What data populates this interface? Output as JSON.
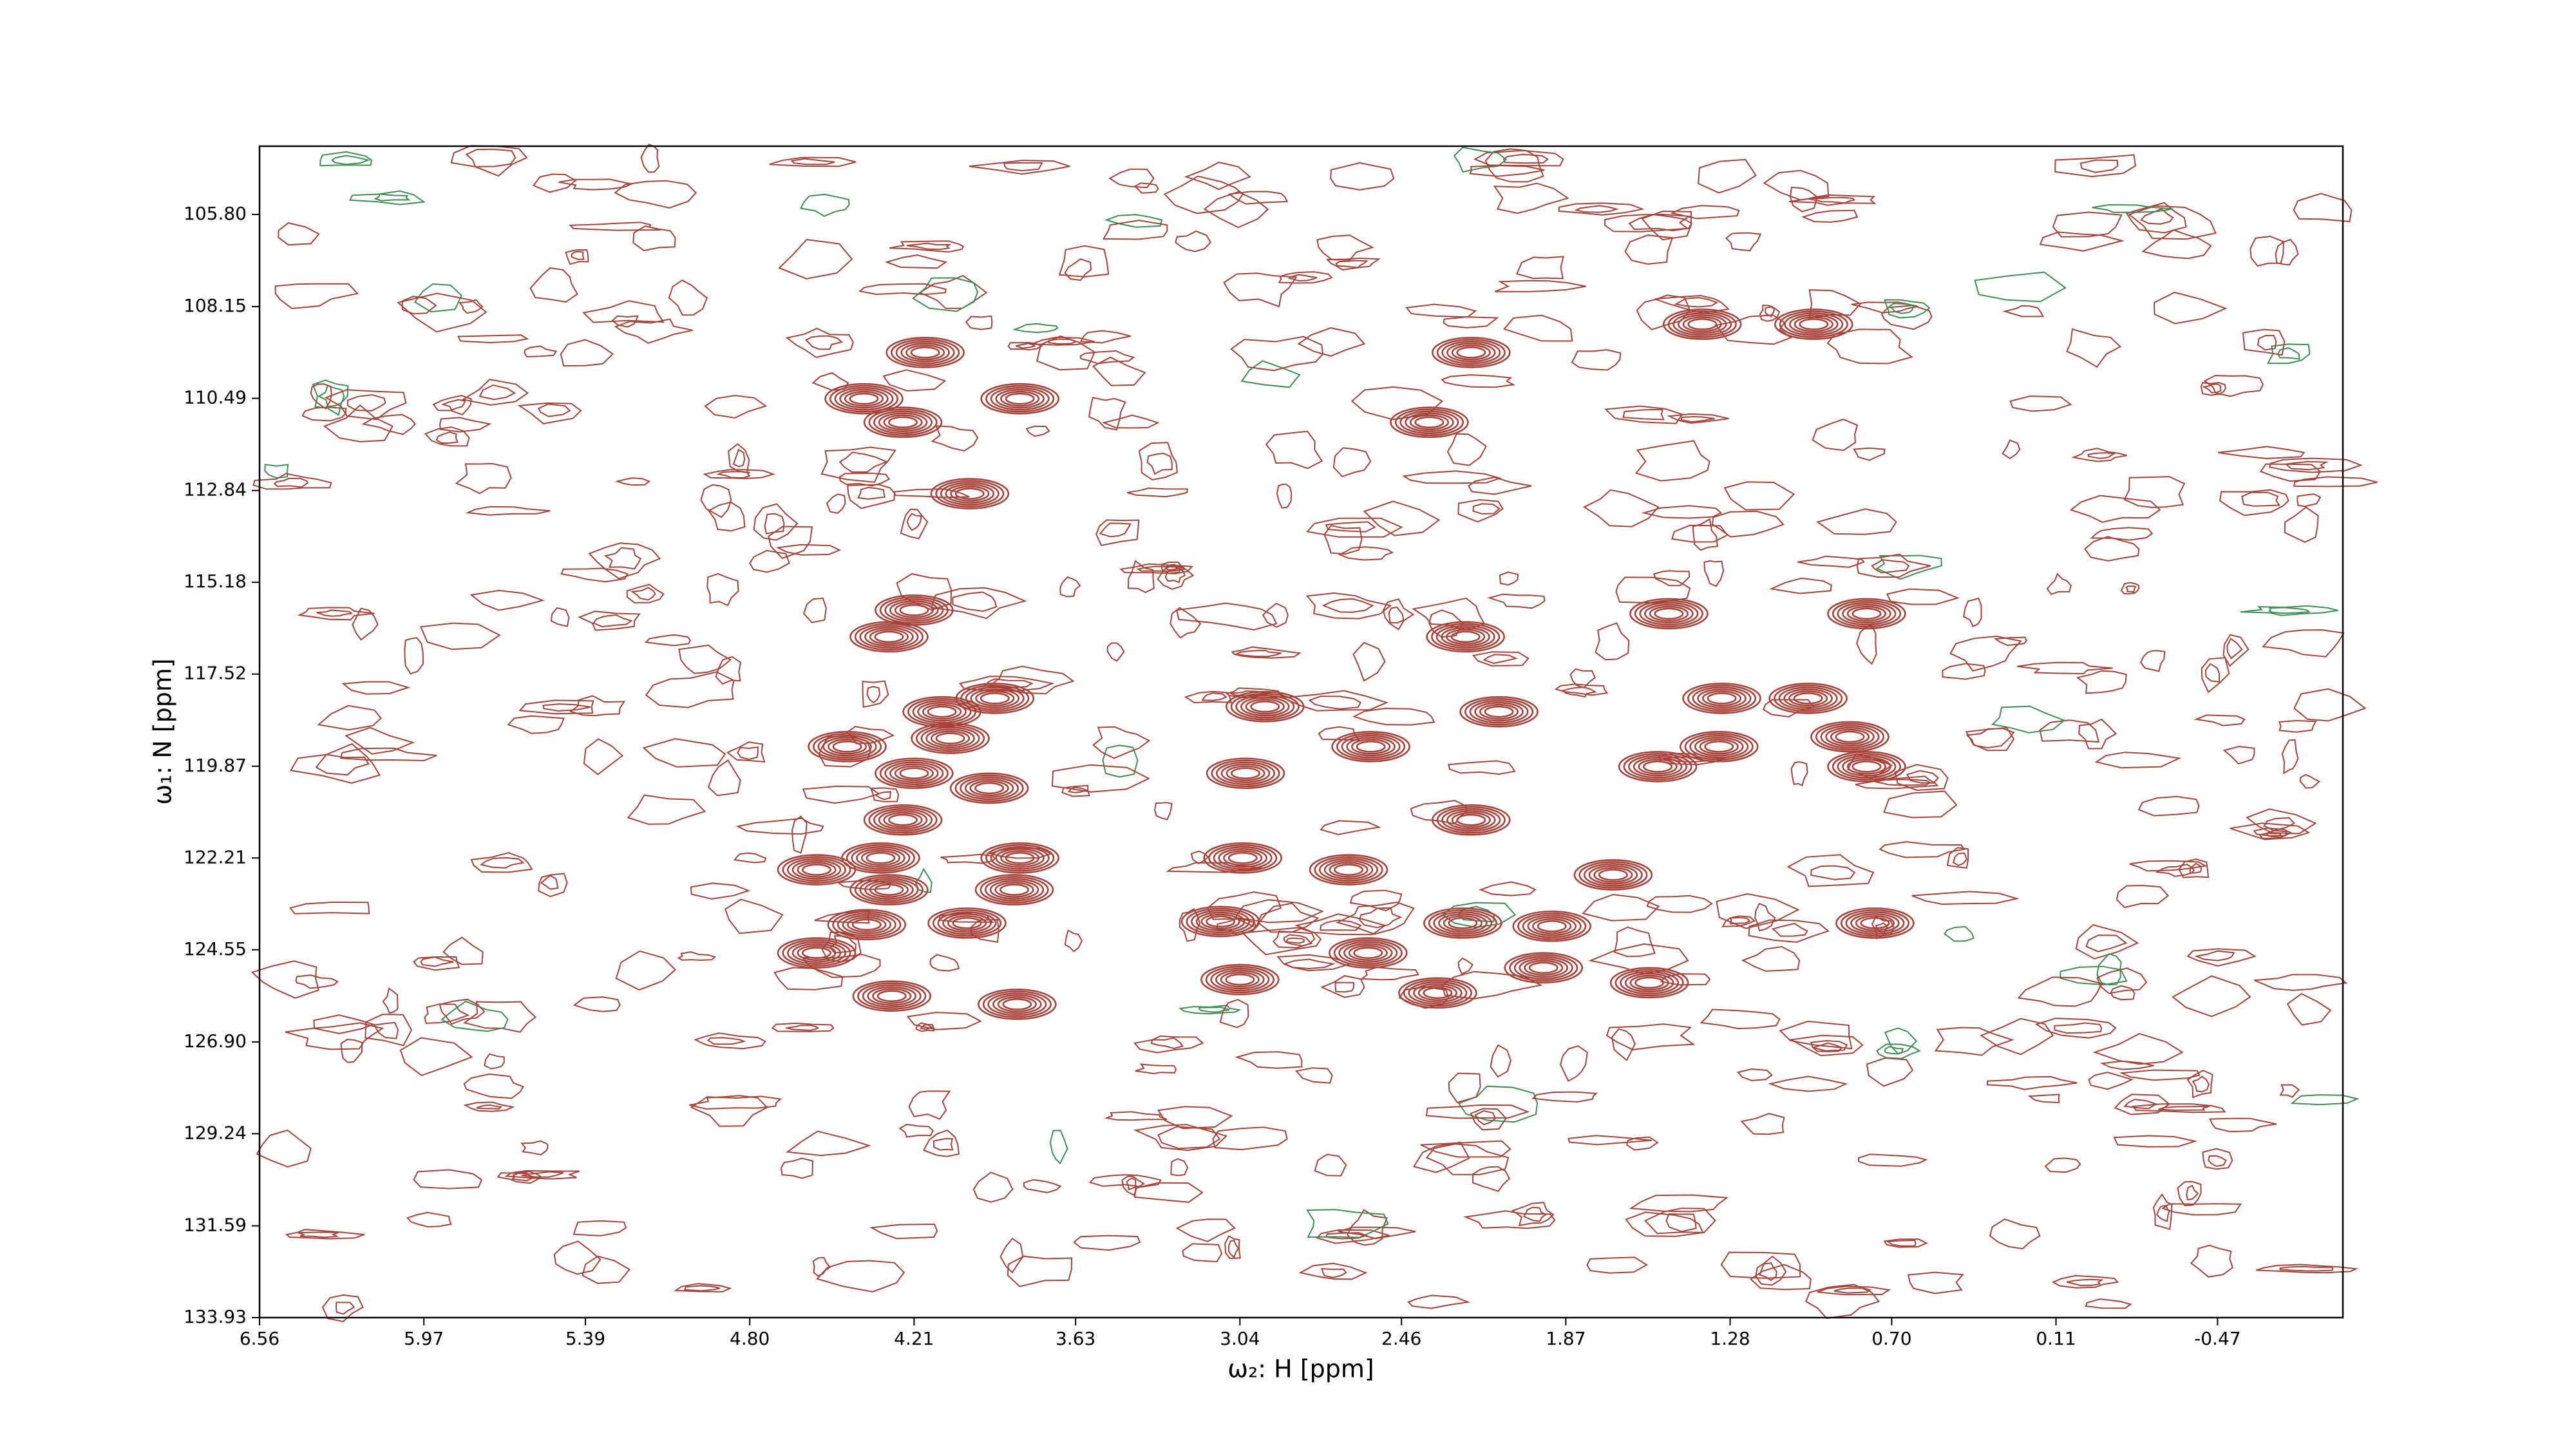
{
  "chart_data": {
    "type": "contour",
    "xlabel": "ω₂: H [ppm]",
    "ylabel": "ω₁: N [ppm]",
    "xlim": [
      6.56,
      -0.92
    ],
    "ylim": [
      133.93,
      104.06
    ],
    "xticks": [
      6.56,
      5.97,
      5.39,
      {
        "value": 4.8,
        "label": "4.80"
      },
      4.21,
      3.63,
      3.04,
      2.46,
      1.87,
      1.28,
      {
        "value": 0.7,
        "label": "0.70"
      },
      0.11,
      -0.47
    ],
    "yticks": [
      {
        "value": 105.8,
        "label": "105.80"
      },
      108.15,
      110.49,
      112.84,
      115.18,
      117.52,
      119.87,
      122.21,
      124.55,
      {
        "value": 126.9,
        "label": "126.90"
      },
      129.24,
      131.59,
      133.93
    ],
    "color": "#a8433b",
    "series": [
      {
        "x": [
          1.38,
          0.98,
          2.21,
          4.17,
          4.39,
          3.83,
          4.25,
          2.36,
          4.01,
          1.5,
          0.79,
          4.21,
          4.3,
          2.23,
          3.92,
          4.11,
          1.31,
          1.0,
          2.11,
          4.08,
          2.95,
          2.57,
          1.32,
          0.85,
          4.45,
          1.54,
          0.79,
          4.21,
          3.94,
          3.02,
          4.25,
          2.21,
          4.56,
          4.33,
          3.83,
          4.3,
          3.85,
          3.03,
          2.65,
          1.7,
          4.38,
          4.02,
          3.11,
          2.24,
          1.92,
          0.76,
          4.56,
          2.58,
          3.04,
          4.29,
          2.33,
          1.57,
          3.84,
          1.95
        ],
        "y": [
          108.6,
          108.6,
          109.32,
          109.32,
          110.5,
          110.5,
          111.1,
          111.1,
          112.92,
          115.98,
          115.98,
          115.89,
          116.57,
          116.57,
          118.14,
          118.48,
          118.14,
          118.14,
          118.48,
          119.16,
          118.35,
          119.37,
          119.37,
          119.12,
          119.37,
          119.88,
          119.88,
          120.05,
          120.43,
          120.05,
          121.24,
          121.24,
          122.51,
          122.21,
          122.21,
          123.02,
          123.02,
          122.21,
          122.51,
          122.64,
          123.91,
          123.87,
          123.83,
          123.87,
          123.95,
          123.87,
          124.63,
          124.63,
          125.31,
          125.73,
          125.65,
          125.39,
          125.94,
          125.01
        ]
      }
    ]
  }
}
